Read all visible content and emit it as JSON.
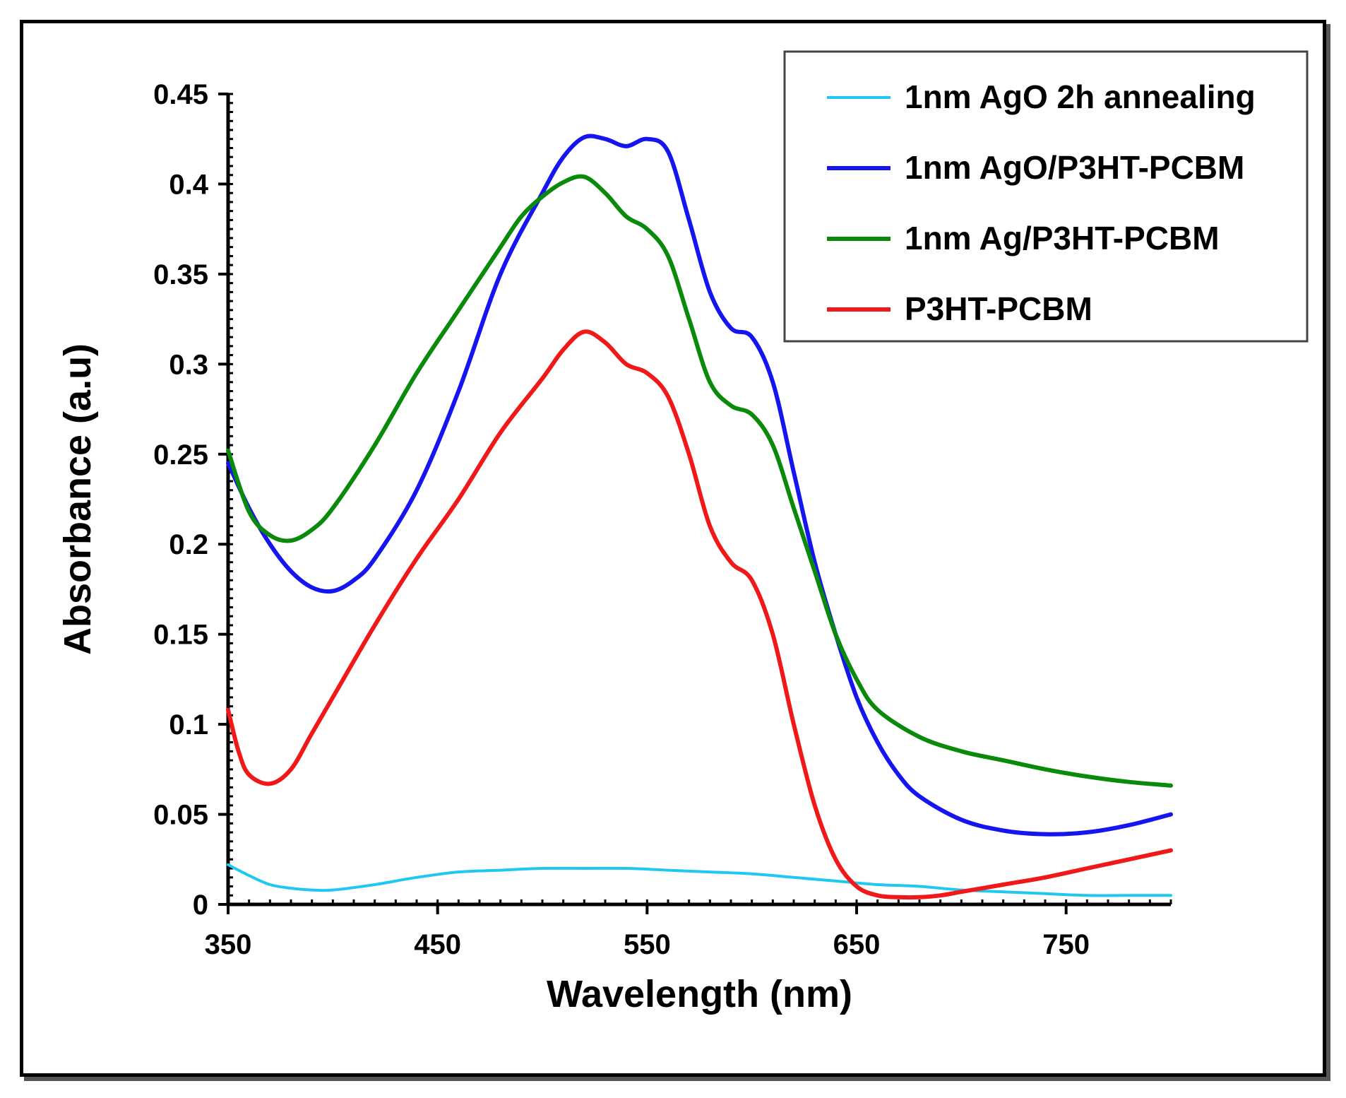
{
  "chart_data": {
    "type": "line",
    "xlabel": "Wavelength (nm)",
    "ylabel": "Absorbance (a.u)",
    "xlim": [
      350,
      800
    ],
    "ylim": [
      0,
      0.45
    ],
    "xticks": [
      "350",
      "450",
      "550",
      "650",
      "750"
    ],
    "xtick_values": [
      350,
      450,
      550,
      650,
      750
    ],
    "yticks": [
      "0",
      "0.05",
      "0.1",
      "0.15",
      "0.2",
      "0.25",
      "0.3",
      "0.35",
      "0.4",
      "0.45"
    ],
    "ytick_values": [
      0,
      0.05,
      0.1,
      0.15,
      0.2,
      0.25,
      0.3,
      0.35,
      0.4,
      0.45
    ],
    "grid": false,
    "legend_position": "top-right",
    "series": [
      {
        "name": "1nm AgO 2h annealing",
        "color": "#1ec8f0",
        "x": [
          350,
          360,
          370,
          380,
          390,
          400,
          420,
          440,
          460,
          480,
          500,
          520,
          540,
          560,
          580,
          600,
          620,
          640,
          660,
          680,
          700,
          720,
          740,
          760,
          780,
          800
        ],
        "y": [
          0.022,
          0.016,
          0.011,
          0.009,
          0.008,
          0.008,
          0.011,
          0.015,
          0.018,
          0.019,
          0.02,
          0.02,
          0.02,
          0.019,
          0.018,
          0.017,
          0.015,
          0.013,
          0.011,
          0.01,
          0.008,
          0.007,
          0.006,
          0.005,
          0.005,
          0.005
        ]
      },
      {
        "name": "1nm AgO/P3HT-PCBM",
        "color": "#1515f0",
        "x": [
          350,
          360,
          370,
          380,
          390,
          400,
          410,
          420,
          440,
          460,
          480,
          500,
          510,
          520,
          530,
          540,
          550,
          560,
          570,
          580,
          590,
          600,
          610,
          620,
          630,
          640,
          650,
          660,
          670,
          680,
          700,
          720,
          740,
          760,
          780,
          800
        ],
        "y": [
          0.245,
          0.22,
          0.2,
          0.185,
          0.176,
          0.174,
          0.18,
          0.192,
          0.23,
          0.285,
          0.35,
          0.395,
          0.415,
          0.426,
          0.425,
          0.421,
          0.425,
          0.418,
          0.38,
          0.34,
          0.32,
          0.315,
          0.29,
          0.24,
          0.19,
          0.15,
          0.115,
          0.09,
          0.072,
          0.06,
          0.047,
          0.041,
          0.039,
          0.04,
          0.044,
          0.05
        ]
      },
      {
        "name": "1nm Ag/P3HT-PCBM",
        "color": "#0a8a0a",
        "x": [
          350,
          360,
          370,
          380,
          390,
          400,
          420,
          440,
          460,
          480,
          490,
          500,
          510,
          520,
          530,
          540,
          550,
          560,
          570,
          580,
          590,
          600,
          610,
          620,
          630,
          640,
          650,
          660,
          680,
          700,
          720,
          740,
          760,
          780,
          800
        ],
        "y": [
          0.252,
          0.218,
          0.205,
          0.202,
          0.208,
          0.22,
          0.255,
          0.295,
          0.33,
          0.365,
          0.382,
          0.393,
          0.401,
          0.404,
          0.395,
          0.382,
          0.375,
          0.36,
          0.325,
          0.29,
          0.277,
          0.272,
          0.255,
          0.22,
          0.185,
          0.15,
          0.125,
          0.108,
          0.093,
          0.085,
          0.08,
          0.075,
          0.071,
          0.068,
          0.066
        ]
      },
      {
        "name": "P3HT-PCBM",
        "color": "#f01818",
        "x": [
          350,
          355,
          360,
          370,
          380,
          390,
          400,
          420,
          440,
          460,
          480,
          500,
          510,
          520,
          530,
          540,
          550,
          560,
          570,
          580,
          590,
          600,
          610,
          620,
          630,
          640,
          650,
          660,
          670,
          680,
          690,
          700,
          720,
          740,
          760,
          780,
          800
        ],
        "y": [
          0.108,
          0.085,
          0.072,
          0.067,
          0.075,
          0.095,
          0.115,
          0.155,
          0.192,
          0.225,
          0.262,
          0.292,
          0.308,
          0.318,
          0.312,
          0.3,
          0.295,
          0.282,
          0.25,
          0.21,
          0.19,
          0.18,
          0.15,
          0.1,
          0.055,
          0.025,
          0.01,
          0.005,
          0.004,
          0.004,
          0.005,
          0.007,
          0.011,
          0.015,
          0.02,
          0.025,
          0.03
        ]
      }
    ]
  }
}
